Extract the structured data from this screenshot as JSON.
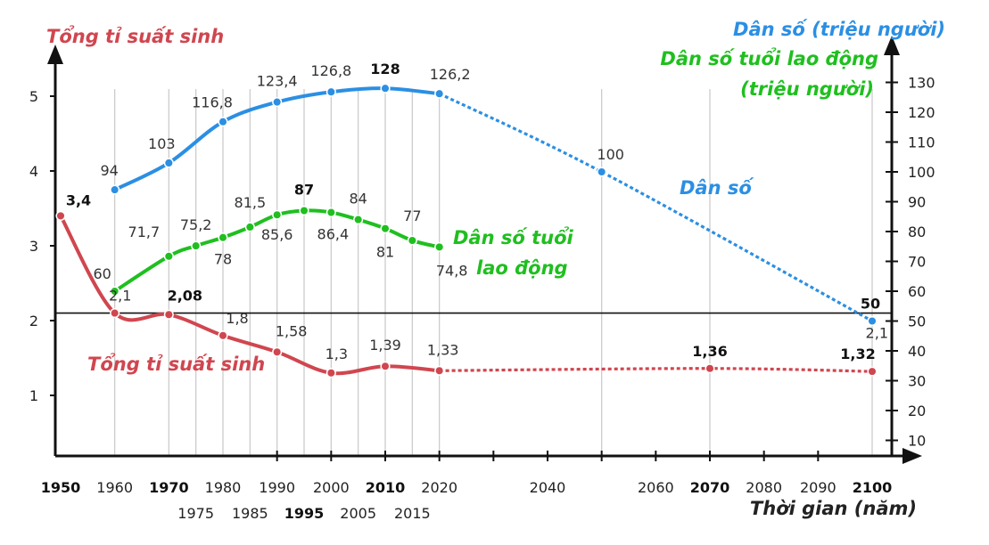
{
  "chart_data": {
    "type": "line",
    "left_axis_title": "Tổng tỉ suất sinh",
    "right_axis_title_population": "Dân số (triệu người)",
    "right_axis_title_working_age_line1": "Dân số tuổi lao động",
    "right_axis_title_working_age_line2": "(triệu người)",
    "xlabel": "Thời gian (năm)",
    "left_ylim": [
      0,
      5.5
    ],
    "left_yticks": [
      "1",
      "2",
      "3",
      "4",
      "5"
    ],
    "right_ylim": [
      0,
      135
    ],
    "right_yticks": [
      "10",
      "20",
      "30",
      "40",
      "50",
      "60",
      "70",
      "80",
      "90",
      "100",
      "110",
      "120",
      "130"
    ],
    "x_ticks_row1": [
      {
        "label": "1950",
        "x": 1950,
        "bold": true
      },
      {
        "label": "1960",
        "x": 1960,
        "bold": false
      },
      {
        "label": "1970",
        "x": 1970,
        "bold": true
      },
      {
        "label": "1980",
        "x": 1980,
        "bold": false
      },
      {
        "label": "1990",
        "x": 1990,
        "bold": false
      },
      {
        "label": "2000",
        "x": 2000,
        "bold": false
      },
      {
        "label": "2010",
        "x": 2010,
        "bold": true
      },
      {
        "label": "2020",
        "x": 2020,
        "bold": false
      },
      {
        "label": "2040",
        "x": 2040,
        "bold": false
      },
      {
        "label": "2060",
        "x": 2060,
        "bold": false
      },
      {
        "label": "2070",
        "x": 2070,
        "bold": true
      },
      {
        "label": "2080",
        "x": 2080,
        "bold": false
      },
      {
        "label": "2090",
        "x": 2090,
        "bold": false
      },
      {
        "label": "2100",
        "x": 2100,
        "bold": true
      }
    ],
    "x_ticks_row2": [
      {
        "label": "1975",
        "x": 1975,
        "bold": false
      },
      {
        "label": "1985",
        "x": 1985,
        "bold": false
      },
      {
        "label": "1995",
        "x": 1995,
        "bold": true
      },
      {
        "label": "2005",
        "x": 2005,
        "bold": false
      },
      {
        "label": "2015",
        "x": 2015,
        "bold": false
      }
    ],
    "reference_line": {
      "value": 2.1,
      "label_left": "2,1",
      "label_right": "2,1"
    },
    "series": [
      {
        "name": "Dân số",
        "axis": "right",
        "color": "#2b8fe3",
        "points": [
          {
            "x": 1960,
            "y": 94,
            "label": "94",
            "bold": false
          },
          {
            "x": 1970,
            "y": 103,
            "label": "103",
            "bold": false
          },
          {
            "x": 1980,
            "y": 116.8,
            "label": "116,8",
            "bold": false
          },
          {
            "x": 1990,
            "y": 123.4,
            "label": "123,4",
            "bold": false
          },
          {
            "x": 2000,
            "y": 126.8,
            "label": "126,8",
            "bold": false
          },
          {
            "x": 2010,
            "y": 128,
            "label": "128",
            "bold": true
          },
          {
            "x": 2020,
            "y": 126.2,
            "label": "126,2",
            "bold": false
          },
          {
            "x": 2050,
            "y": 100,
            "label": "100",
            "bold": false
          },
          {
            "x": 2100,
            "y": 50,
            "label": "50",
            "bold": true
          }
        ],
        "projection_from_x": 2020
      },
      {
        "name": "Dân số tuổi lao động",
        "axis": "right",
        "color": "#1fbf1f",
        "points": [
          {
            "x": 1960,
            "y": 60,
            "label": "60",
            "bold": false
          },
          {
            "x": 1970,
            "y": 71.7,
            "label": "71,7",
            "bold": false
          },
          {
            "x": 1975,
            "y": 75.2,
            "label": "75,2",
            "bold": false
          },
          {
            "x": 1980,
            "y": 78,
            "label": "78",
            "bold": false
          },
          {
            "x": 1985,
            "y": 81.5,
            "label": "81,5",
            "bold": false
          },
          {
            "x": 1990,
            "y": 85.6,
            "label": "85,6",
            "bold": false
          },
          {
            "x": 1995,
            "y": 87,
            "label": "87",
            "bold": true
          },
          {
            "x": 2000,
            "y": 86.4,
            "label": "86,4",
            "bold": false
          },
          {
            "x": 2005,
            "y": 84,
            "label": "84",
            "bold": false
          },
          {
            "x": 2010,
            "y": 81,
            "label": "81",
            "bold": false
          },
          {
            "x": 2015,
            "y": 77,
            "label": "77",
            "bold": false
          },
          {
            "x": 2020,
            "y": 74.8,
            "label": "74,8",
            "bold": false
          }
        ],
        "projection_from_x": null
      },
      {
        "name": "Tổng tỉ suất sinh",
        "axis": "left",
        "color": "#d0464f",
        "points": [
          {
            "x": 1950,
            "y": 3.4,
            "label": "3,4",
            "bold": true
          },
          {
            "x": 1960,
            "y": 2.1,
            "label": "2,1",
            "bold": false
          },
          {
            "x": 1970,
            "y": 2.08,
            "label": "2,08",
            "bold": true
          },
          {
            "x": 1980,
            "y": 1.8,
            "label": "1,8",
            "bold": false
          },
          {
            "x": 1990,
            "y": 1.58,
            "label": "1,58",
            "bold": false
          },
          {
            "x": 2000,
            "y": 1.3,
            "label": "1,3",
            "bold": false
          },
          {
            "x": 2010,
            "y": 1.39,
            "label": "1,39",
            "bold": false
          },
          {
            "x": 2020,
            "y": 1.33,
            "label": "1,33",
            "bold": false
          },
          {
            "x": 2070,
            "y": 1.36,
            "label": "1,36",
            "bold": true
          },
          {
            "x": 2100,
            "y": 1.32,
            "label": "1,32",
            "bold": true
          }
        ],
        "projection_from_x": 2020
      }
    ],
    "inline_labels": {
      "population": "Dân số",
      "working_age_line1": "Dân số tuổi",
      "working_age_line2": "lao động",
      "fertility": "Tổng tỉ suất sinh"
    }
  }
}
